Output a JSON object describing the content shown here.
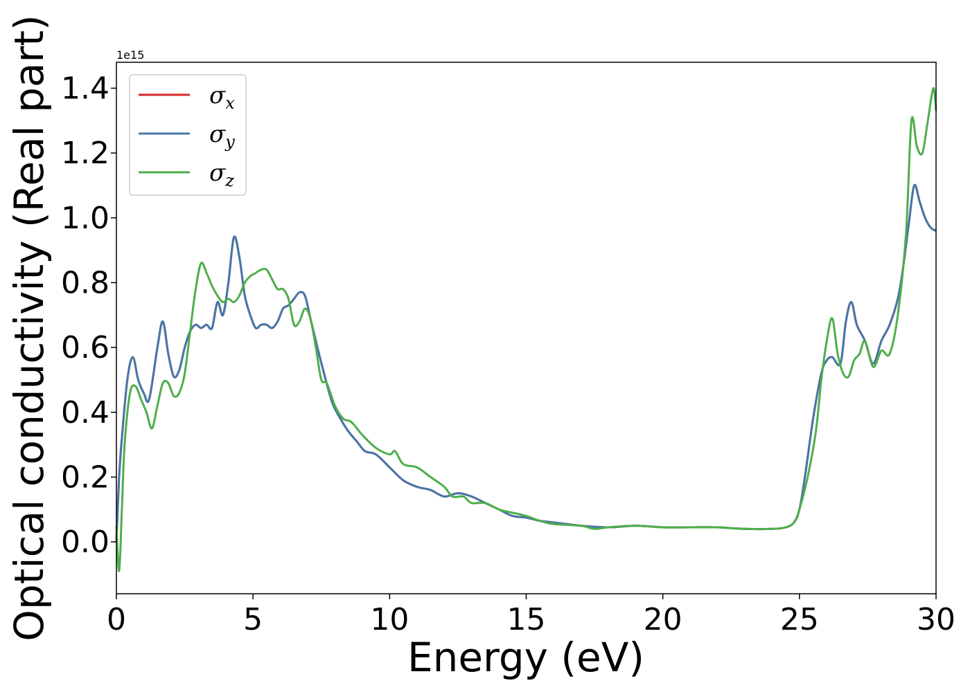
{
  "chart_data": {
    "type": "line",
    "title": "",
    "xlabel": "Energy (eV)",
    "ylabel": "Optical conductivity (Real part)",
    "y_offset_label": "1e15",
    "xlim": [
      0,
      30
    ],
    "ylim": [
      -0.16,
      1.48
    ],
    "xticks": [
      0,
      5,
      10,
      15,
      20,
      25,
      30
    ],
    "xtick_labels": [
      "0",
      "5",
      "10",
      "15",
      "20",
      "25",
      "30"
    ],
    "yticks": [
      0.0,
      0.2,
      0.4,
      0.6,
      0.8,
      1.0,
      1.2,
      1.4
    ],
    "ytick_labels": [
      "0.0",
      "0.2",
      "0.4",
      "0.6",
      "0.8",
      "1.0",
      "1.2",
      "1.4"
    ],
    "grid": false,
    "legend_position": "top-left",
    "colors": {
      "sigma_x": "#d62728",
      "sigma_y": "#4477aa",
      "sigma_z": "#4dae4a"
    },
    "series": [
      {
        "key": "sigma_x",
        "name_main": "σ",
        "name_sub": "x",
        "x": [
          0,
          0.1,
          0.2,
          0.4,
          0.6,
          0.8,
          1.0,
          1.2,
          1.5,
          1.7,
          1.9,
          2.1,
          2.3,
          2.5,
          2.7,
          2.9,
          3.1,
          3.3,
          3.5,
          3.7,
          3.9,
          4.1,
          4.3,
          4.5,
          4.7,
          4.9,
          5.1,
          5.3,
          5.5,
          5.7,
          5.9,
          6.1,
          6.3,
          6.5,
          6.7,
          6.9,
          7.1,
          7.3,
          7.6,
          7.9,
          8.2,
          8.5,
          8.8,
          9.1,
          9.5,
          10,
          10.5,
          11,
          11.5,
          12,
          12.5,
          13,
          13.5,
          14,
          14.5,
          15,
          15.5,
          16,
          17,
          18,
          19,
          20,
          21,
          22,
          23,
          24,
          24.5,
          24.8,
          25,
          25.2,
          25.5,
          25.8,
          26,
          26.2,
          26.5,
          26.7,
          26.9,
          27.1,
          27.4,
          27.7,
          28,
          28.3,
          28.6,
          28.8,
          29,
          29.2,
          29.4,
          29.6,
          29.8,
          30
        ],
        "values": [
          0.0,
          0.2,
          0.32,
          0.5,
          0.57,
          0.5,
          0.46,
          0.44,
          0.6,
          0.68,
          0.58,
          0.51,
          0.53,
          0.6,
          0.65,
          0.67,
          0.66,
          0.67,
          0.66,
          0.74,
          0.7,
          0.8,
          0.94,
          0.88,
          0.76,
          0.7,
          0.66,
          0.67,
          0.67,
          0.66,
          0.68,
          0.72,
          0.73,
          0.75,
          0.77,
          0.76,
          0.69,
          0.62,
          0.52,
          0.43,
          0.38,
          0.34,
          0.31,
          0.28,
          0.27,
          0.23,
          0.19,
          0.17,
          0.16,
          0.14,
          0.15,
          0.14,
          0.12,
          0.1,
          0.08,
          0.075,
          0.065,
          0.06,
          0.05,
          0.045,
          0.05,
          0.045,
          0.045,
          0.045,
          0.04,
          0.04,
          0.045,
          0.06,
          0.1,
          0.2,
          0.38,
          0.52,
          0.56,
          0.57,
          0.55,
          0.68,
          0.74,
          0.67,
          0.62,
          0.55,
          0.62,
          0.67,
          0.75,
          0.85,
          0.98,
          1.1,
          1.05,
          1.0,
          0.97,
          0.96
        ]
      },
      {
        "key": "sigma_y",
        "name_main": "σ",
        "name_sub": "y",
        "x": [
          0,
          0.1,
          0.2,
          0.4,
          0.6,
          0.8,
          1.0,
          1.2,
          1.5,
          1.7,
          1.9,
          2.1,
          2.3,
          2.5,
          2.7,
          2.9,
          3.1,
          3.3,
          3.5,
          3.7,
          3.9,
          4.1,
          4.3,
          4.5,
          4.7,
          4.9,
          5.1,
          5.3,
          5.5,
          5.7,
          5.9,
          6.1,
          6.3,
          6.5,
          6.7,
          6.9,
          7.1,
          7.3,
          7.6,
          7.9,
          8.2,
          8.5,
          8.8,
          9.1,
          9.5,
          10,
          10.5,
          11,
          11.5,
          12,
          12.5,
          13,
          13.5,
          14,
          14.5,
          15,
          15.5,
          16,
          17,
          18,
          19,
          20,
          21,
          22,
          23,
          24,
          24.5,
          24.8,
          25,
          25.2,
          25.5,
          25.8,
          26,
          26.2,
          26.5,
          26.7,
          26.9,
          27.1,
          27.4,
          27.7,
          28,
          28.3,
          28.6,
          28.8,
          29,
          29.2,
          29.4,
          29.6,
          29.8,
          30
        ],
        "values": [
          0.0,
          0.2,
          0.32,
          0.5,
          0.57,
          0.5,
          0.46,
          0.44,
          0.6,
          0.68,
          0.58,
          0.51,
          0.53,
          0.6,
          0.65,
          0.67,
          0.66,
          0.67,
          0.66,
          0.74,
          0.7,
          0.8,
          0.94,
          0.88,
          0.76,
          0.7,
          0.66,
          0.67,
          0.67,
          0.66,
          0.68,
          0.72,
          0.73,
          0.75,
          0.77,
          0.76,
          0.69,
          0.62,
          0.52,
          0.43,
          0.38,
          0.34,
          0.31,
          0.28,
          0.27,
          0.23,
          0.19,
          0.17,
          0.16,
          0.14,
          0.15,
          0.14,
          0.12,
          0.1,
          0.08,
          0.075,
          0.065,
          0.06,
          0.05,
          0.045,
          0.05,
          0.045,
          0.045,
          0.045,
          0.04,
          0.04,
          0.045,
          0.06,
          0.1,
          0.2,
          0.38,
          0.52,
          0.56,
          0.57,
          0.55,
          0.68,
          0.74,
          0.67,
          0.62,
          0.55,
          0.62,
          0.67,
          0.75,
          0.85,
          0.98,
          1.1,
          1.05,
          1.0,
          0.97,
          0.96
        ]
      },
      {
        "key": "sigma_z",
        "name_main": "σ",
        "name_sub": "z",
        "x": [
          0,
          0.1,
          0.2,
          0.3,
          0.5,
          0.7,
          0.9,
          1.1,
          1.3,
          1.5,
          1.7,
          1.9,
          2.1,
          2.3,
          2.5,
          2.7,
          2.9,
          3.1,
          3.3,
          3.5,
          3.7,
          3.9,
          4.1,
          4.3,
          4.5,
          4.7,
          4.9,
          5.1,
          5.3,
          5.5,
          5.7,
          5.9,
          6.1,
          6.3,
          6.5,
          6.7,
          6.9,
          7.1,
          7.3,
          7.5,
          7.7,
          8,
          8.3,
          8.6,
          9,
          9.5,
          10,
          10.2,
          10.5,
          11,
          11.5,
          12,
          12.3,
          12.7,
          13,
          13.5,
          14,
          14.5,
          15,
          15.5,
          16,
          17,
          17.5,
          18,
          19,
          20,
          21,
          22,
          23,
          24,
          24.5,
          24.8,
          25,
          25.3,
          25.6,
          25.8,
          26,
          26.2,
          26.4,
          26.6,
          26.8,
          27,
          27.2,
          27.4,
          27.7,
          28,
          28.3,
          28.6,
          28.9,
          29.1,
          29.3,
          29.5,
          29.7,
          29.9,
          30
        ],
        "values": [
          0.05,
          -0.09,
          0.1,
          0.3,
          0.46,
          0.48,
          0.44,
          0.4,
          0.35,
          0.42,
          0.49,
          0.49,
          0.45,
          0.46,
          0.52,
          0.65,
          0.78,
          0.86,
          0.83,
          0.79,
          0.76,
          0.74,
          0.75,
          0.74,
          0.76,
          0.8,
          0.82,
          0.83,
          0.84,
          0.84,
          0.81,
          0.78,
          0.78,
          0.75,
          0.67,
          0.68,
          0.72,
          0.69,
          0.6,
          0.5,
          0.49,
          0.42,
          0.38,
          0.37,
          0.33,
          0.29,
          0.27,
          0.28,
          0.24,
          0.23,
          0.2,
          0.17,
          0.14,
          0.14,
          0.12,
          0.12,
          0.1,
          0.09,
          0.08,
          0.065,
          0.055,
          0.05,
          0.04,
          0.045,
          0.05,
          0.045,
          0.045,
          0.045,
          0.04,
          0.04,
          0.045,
          0.06,
          0.1,
          0.2,
          0.34,
          0.5,
          0.62,
          0.69,
          0.58,
          0.52,
          0.51,
          0.56,
          0.58,
          0.62,
          0.54,
          0.59,
          0.58,
          0.7,
          0.95,
          1.3,
          1.22,
          1.2,
          1.3,
          1.4,
          1.33
        ]
      }
    ]
  }
}
